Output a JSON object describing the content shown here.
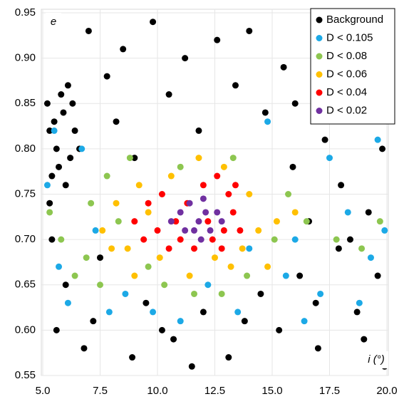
{
  "chart_data": {
    "type": "scatter",
    "x_label": "i (°)",
    "y_label": "e",
    "xlim": [
      5,
      20
    ],
    "ylim": [
      0.55,
      0.95
    ],
    "xticks": [
      {
        "value": 5,
        "label": "5.0"
      },
      7.5,
      {
        "value": 10,
        "label": "10.0"
      },
      12.5,
      {
        "value": 15,
        "label": "15.0"
      },
      17.5,
      {
        "value": 20,
        "label": "20.0"
      }
    ],
    "yticks": [
      0.55,
      {
        "value": 0.6,
        "label": "0.60"
      },
      0.65,
      {
        "value": 0.7,
        "label": "0.70"
      },
      0.75,
      {
        "value": 0.8,
        "label": "0.80"
      },
      0.85,
      {
        "value": 0.9,
        "label": "0.90"
      },
      0.95
    ],
    "grid": true,
    "legend": "top-right",
    "series": [
      {
        "name": "Background",
        "color": "#000000",
        "x": [
          5.3,
          5.6,
          5.9,
          6.2,
          5.4,
          5.8,
          6.4,
          5.2,
          6.0,
          5.5,
          6.6,
          5.7,
          6.1,
          5.3,
          6.3,
          7.0,
          8.5,
          9.8,
          11.2,
          12.6,
          14.0,
          15.5,
          16.8,
          18.2,
          19.5,
          7.8,
          10.5,
          13.4,
          16.0,
          18.9,
          8.2,
          11.8,
          14.7,
          17.3,
          19.8,
          9.0,
          15.9,
          18.0,
          19.2,
          16.6,
          17.9,
          19.6,
          14.5,
          12.0,
          9.5,
          7.2,
          5.6,
          6.8,
          8.9,
          10.7,
          13.1,
          15.3,
          17.0,
          18.7,
          19.9,
          11.5,
          6.0,
          7.5,
          16.2,
          18.4,
          10.2,
          13.8,
          16.9,
          19.0,
          5.4
        ],
        "values": [
          0.82,
          0.8,
          0.84,
          0.79,
          0.77,
          0.86,
          0.82,
          0.85,
          0.76,
          0.83,
          0.8,
          0.78,
          0.87,
          0.74,
          0.85,
          0.93,
          0.91,
          0.94,
          0.9,
          0.92,
          0.93,
          0.89,
          0.91,
          0.94,
          0.9,
          0.88,
          0.86,
          0.87,
          0.85,
          0.86,
          0.83,
          0.82,
          0.84,
          0.81,
          0.8,
          0.79,
          0.78,
          0.76,
          0.73,
          0.72,
          0.69,
          0.66,
          0.64,
          0.62,
          0.63,
          0.61,
          0.6,
          0.58,
          0.57,
          0.59,
          0.57,
          0.6,
          0.58,
          0.62,
          0.56,
          0.56,
          0.65,
          0.68,
          0.66,
          0.7,
          0.6,
          0.61,
          0.63,
          0.59,
          0.7
        ]
      },
      {
        "name": "D < 0.105",
        "color": "#1ca9e6",
        "x": [
          5.5,
          5.2,
          6.7,
          17.5,
          19.6,
          18.3,
          19.3,
          15.6,
          17.1,
          6.1,
          7.9,
          11.0,
          13.5,
          16.4,
          18.8,
          5.7,
          8.6,
          14.8,
          7.3,
          16.0,
          12.2,
          9.8,
          19.9,
          14.0
        ],
        "values": [
          0.82,
          0.76,
          0.8,
          0.79,
          0.81,
          0.73,
          0.68,
          0.66,
          0.64,
          0.63,
          0.62,
          0.61,
          0.62,
          0.61,
          0.63,
          0.67,
          0.64,
          0.83,
          0.71,
          0.7,
          0.65,
          0.62,
          0.71,
          0.69
        ]
      },
      {
        "name": "D < 0.08",
        "color": "#8dc650",
        "x": [
          5.3,
          5.8,
          6.4,
          7.1,
          7.8,
          8.3,
          6.9,
          8.8,
          9.6,
          10.3,
          11.6,
          12.8,
          13.9,
          15.1,
          16.5,
          17.8,
          18.9,
          15.7,
          13.3,
          11.0,
          7.5,
          19.7
        ],
        "values": [
          0.73,
          0.7,
          0.66,
          0.74,
          0.77,
          0.72,
          0.68,
          0.79,
          0.67,
          0.65,
          0.64,
          0.64,
          0.66,
          0.7,
          0.72,
          0.7,
          0.69,
          0.75,
          0.79,
          0.78,
          0.65,
          0.72
        ]
      },
      {
        "name": "D < 0.06",
        "color": "#ffc000",
        "x": [
          7.6,
          8.2,
          8.7,
          9.2,
          9.0,
          10.1,
          11.4,
          12.5,
          13.7,
          14.4,
          15.2,
          14.0,
          12.9,
          11.8,
          10.6,
          8.0,
          13.2,
          16.0,
          9.6,
          14.8
        ],
        "values": [
          0.71,
          0.74,
          0.69,
          0.76,
          0.66,
          0.68,
          0.66,
          0.68,
          0.69,
          0.71,
          0.72,
          0.75,
          0.78,
          0.79,
          0.77,
          0.69,
          0.67,
          0.73,
          0.73,
          0.67
        ]
      },
      {
        "name": "D < 0.04",
        "color": "#ff0000",
        "x": [
          9.0,
          9.6,
          10.2,
          10.8,
          11.0,
          11.6,
          12.4,
          12.9,
          13.3,
          13.1,
          12.6,
          12.0,
          10.5,
          12.8,
          13.6,
          9.4,
          11.3,
          13.4,
          12.2,
          10.0
        ],
        "values": [
          0.72,
          0.74,
          0.75,
          0.72,
          0.7,
          0.69,
          0.7,
          0.71,
          0.73,
          0.75,
          0.77,
          0.76,
          0.69,
          0.69,
          0.71,
          0.7,
          0.74,
          0.76,
          0.72,
          0.71
        ]
      },
      {
        "name": "D < 0.02",
        "color": "#7030a0",
        "x": [
          10.6,
          11.0,
          11.4,
          11.8,
          12.1,
          12.3,
          11.6,
          12.6,
          11.2,
          12.0,
          12.8,
          11.9
        ],
        "values": [
          0.72,
          0.73,
          0.74,
          0.72,
          0.73,
          0.71,
          0.71,
          0.73,
          0.71,
          0.745,
          0.72,
          0.7
        ]
      }
    ]
  }
}
